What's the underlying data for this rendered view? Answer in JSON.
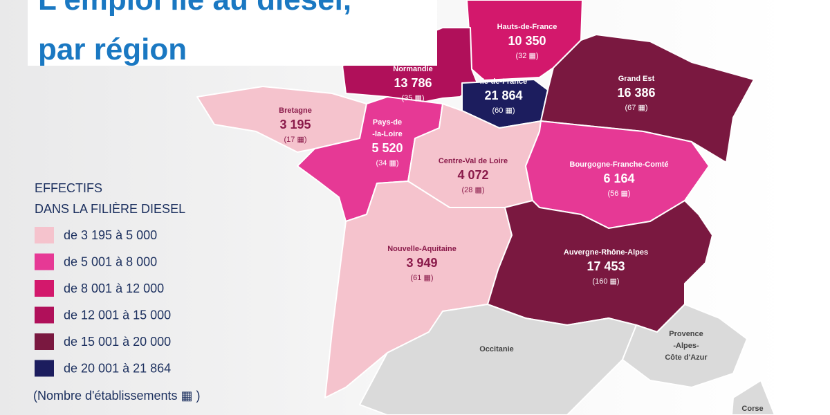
{
  "title": {
    "lines": [
      "L'emploi lié au diesel,",
      "par région"
    ]
  },
  "regions": [
    {
      "name": [
        "Hauts-de-France"
      ],
      "value": "10 350",
      "count": "(32 ▦)",
      "color": "#d3186c"
    },
    {
      "name": [
        "Normandie"
      ],
      "value": "13 786",
      "count": "(35 ▦)",
      "color": "#b0105a"
    },
    {
      "name": [
        "Île-de-France"
      ],
      "value": "21 864",
      "count": "(60 ▦)",
      "color": "#1c1d5e"
    },
    {
      "name": [
        "Grand Est"
      ],
      "value": "16 386",
      "count": "(67 ▦)",
      "color": "#7a1840"
    },
    {
      "name": [
        "Bretagne"
      ],
      "value": "3 195",
      "count": "(17 ▦)",
      "color": "#f5c3cd"
    },
    {
      "name": [
        "Pays-de",
        "-la-Loire"
      ],
      "value": "5 520",
      "count": "(34 ▦)",
      "color": "#e63995"
    },
    {
      "name": [
        "Centre-Val de Loire"
      ],
      "value": "4 072",
      "count": "(28 ▦)",
      "color": "#f5c3cd"
    },
    {
      "name": [
        "Bourgogne-Franche-Comté"
      ],
      "value": "6 164",
      "count": "(56 ▦)",
      "color": "#e63995"
    },
    {
      "name": [
        "Nouvelle-Aquitaine"
      ],
      "value": "3 949",
      "count": "(61 ▦)",
      "color": "#f5c3cd"
    },
    {
      "name": [
        "Auvergne-Rhône-Alpes"
      ],
      "value": "17 453",
      "count": "(160 ▦)",
      "color": "#7a1840"
    },
    {
      "name": [
        "Occitanie"
      ],
      "color": "#dadada"
    },
    {
      "name": [
        "Provence",
        "-Alpes-",
        "Côte d'Azur"
      ],
      "color": "#dadada"
    },
    {
      "name": [
        "Corse"
      ],
      "color": "#dadada"
    }
  ],
  "legend": {
    "heading": [
      "EFFECTIFS",
      "DANS LA FILIÈRE DIESEL"
    ],
    "items": [
      {
        "label": "de 3 195 à 5 000",
        "color": "#f5c3cd"
      },
      {
        "label": "de 5 001 à 8 000",
        "color": "#e63995"
      },
      {
        "label": "de 8 001 à 12 000",
        "color": "#d3186c"
      },
      {
        "label": "de 12 001 à 15 000",
        "color": "#b0105a"
      },
      {
        "label": "de 15 001 à 20 000",
        "color": "#7a1840"
      },
      {
        "label": "de 20 001 à 21 864",
        "color": "#1c1d5e"
      }
    ],
    "note": "(Nombre d'établissements ▦ )"
  }
}
